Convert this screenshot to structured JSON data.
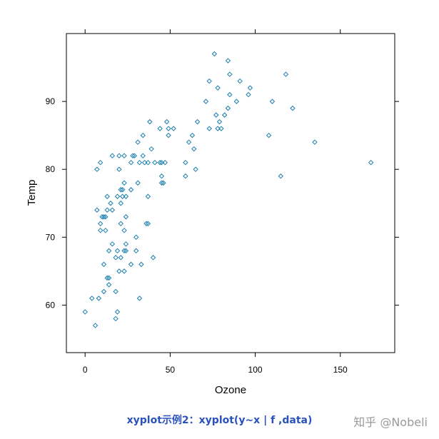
{
  "caption": "xyplot示例2：xyplot(y~x | f ,data)",
  "watermark": "知乎 @Nobeli",
  "colors": {
    "points": "#1a7fb0",
    "caption": "#2a52be",
    "axis": "#000000",
    "watermark": "#9a9a9a"
  },
  "chart_data": {
    "type": "scatter",
    "xlabel": "Ozone",
    "ylabel": "Temp",
    "xlim": [
      -11,
      182
    ],
    "ylim": [
      53,
      100
    ],
    "xticks": [
      0,
      50,
      100,
      150
    ],
    "yticks": [
      60,
      70,
      80,
      90
    ],
    "grid": false,
    "marker": "open-diamond",
    "points": [
      [
        0,
        59
      ],
      [
        4,
        61
      ],
      [
        6,
        57
      ],
      [
        7,
        80
      ],
      [
        7,
        74
      ],
      [
        8,
        61
      ],
      [
        9,
        71
      ],
      [
        9,
        72
      ],
      [
        9,
        81
      ],
      [
        10,
        73
      ],
      [
        11,
        73
      ],
      [
        11,
        66
      ],
      [
        11,
        62
      ],
      [
        12,
        73
      ],
      [
        12,
        71
      ],
      [
        13,
        74
      ],
      [
        13,
        76
      ],
      [
        13,
        64
      ],
      [
        14,
        68
      ],
      [
        14,
        64
      ],
      [
        14,
        63
      ],
      [
        15,
        75
      ],
      [
        16,
        69
      ],
      [
        16,
        82
      ],
      [
        16,
        74
      ],
      [
        18,
        62
      ],
      [
        18,
        58
      ],
      [
        18,
        67
      ],
      [
        19,
        59
      ],
      [
        19,
        68
      ],
      [
        19,
        76
      ],
      [
        20,
        65
      ],
      [
        20,
        80
      ],
      [
        20,
        82
      ],
      [
        21,
        77
      ],
      [
        21,
        75
      ],
      [
        21,
        72
      ],
      [
        21,
        67
      ],
      [
        22,
        77
      ],
      [
        22,
        76
      ],
      [
        23,
        68
      ],
      [
        23,
        82
      ],
      [
        23,
        78
      ],
      [
        23,
        71
      ],
      [
        23,
        65
      ],
      [
        24,
        73
      ],
      [
        24,
        69
      ],
      [
        24,
        76
      ],
      [
        24,
        68
      ],
      [
        27,
        66
      ],
      [
        27,
        77
      ],
      [
        27,
        81
      ],
      [
        28,
        82
      ],
      [
        29,
        82
      ],
      [
        30,
        68
      ],
      [
        30,
        70
      ],
      [
        31,
        78
      ],
      [
        31,
        84
      ],
      [
        32,
        61
      ],
      [
        32,
        81
      ],
      [
        33,
        66
      ],
      [
        34,
        85
      ],
      [
        34,
        82
      ],
      [
        35,
        81
      ],
      [
        36,
        72
      ],
      [
        37,
        72
      ],
      [
        37,
        76
      ],
      [
        37,
        81
      ],
      [
        38,
        87
      ],
      [
        39,
        83
      ],
      [
        40,
        67
      ],
      [
        41,
        81
      ],
      [
        44,
        86
      ],
      [
        44,
        81
      ],
      [
        45,
        79
      ],
      [
        45,
        78
      ],
      [
        45,
        81
      ],
      [
        46,
        78
      ],
      [
        47,
        81
      ],
      [
        48,
        87
      ],
      [
        49,
        85
      ],
      [
        49,
        86
      ],
      [
        52,
        86
      ],
      [
        59,
        79
      ],
      [
        59,
        81
      ],
      [
        61,
        84
      ],
      [
        63,
        85
      ],
      [
        64,
        83
      ],
      [
        65,
        80
      ],
      [
        66,
        87
      ],
      [
        71,
        90
      ],
      [
        73,
        86
      ],
      [
        73,
        93
      ],
      [
        76,
        97
      ],
      [
        77,
        88
      ],
      [
        78,
        92
      ],
      [
        78,
        86
      ],
      [
        79,
        87
      ],
      [
        80,
        86
      ],
      [
        82,
        88
      ],
      [
        84,
        96
      ],
      [
        84,
        89
      ],
      [
        85,
        94
      ],
      [
        85,
        91
      ],
      [
        89,
        90
      ],
      [
        91,
        93
      ],
      [
        96,
        91
      ],
      [
        97,
        92
      ],
      [
        108,
        85
      ],
      [
        110,
        90
      ],
      [
        115,
        79
      ],
      [
        118,
        94
      ],
      [
        122,
        89
      ],
      [
        135,
        84
      ],
      [
        168,
        81
      ]
    ]
  }
}
